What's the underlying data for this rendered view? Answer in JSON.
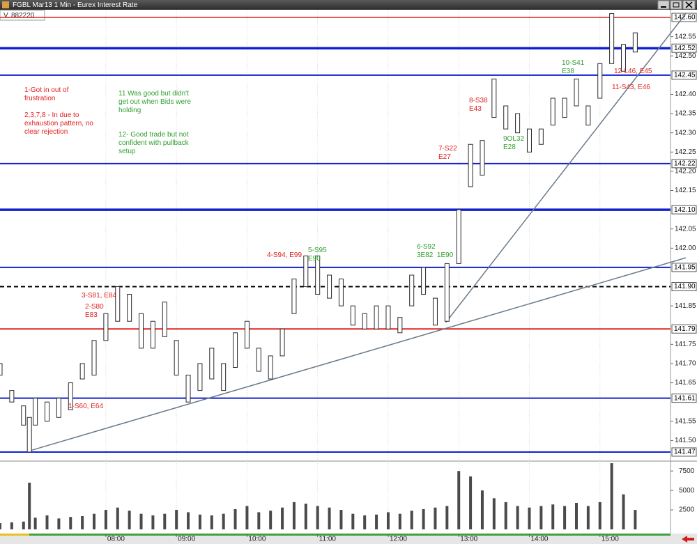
{
  "chart_data": {
    "type": "hilo",
    "title": "FGBL Mar13 1 Min - Eurex Interest Rate",
    "readout_label": "V",
    "readout_value": 882220,
    "x": [
      "06:30",
      "06:40",
      "06:50",
      "06:55",
      "07:00",
      "07:10",
      "07:20",
      "07:30",
      "07:40",
      "07:50",
      "08:00",
      "08:10",
      "08:20",
      "08:30",
      "08:40",
      "08:50",
      "09:00",
      "09:10",
      "09:20",
      "09:30",
      "09:40",
      "09:50",
      "10:00",
      "10:10",
      "10:20",
      "10:30",
      "10:40",
      "10:50",
      "11:00",
      "11:10",
      "11:20",
      "11:30",
      "11:40",
      "11:50",
      "12:00",
      "12:10",
      "12:20",
      "12:30",
      "12:40",
      "12:50",
      "13:00",
      "13:10",
      "13:20",
      "13:30",
      "13:40",
      "13:50",
      "14:00",
      "14:10",
      "14:20",
      "14:30",
      "14:40",
      "14:50",
      "15:00",
      "15:10",
      "15:20",
      "15:30"
    ],
    "high": [
      141.7,
      141.63,
      141.59,
      141.56,
      141.61,
      141.6,
      141.61,
      141.65,
      141.7,
      141.76,
      141.83,
      141.9,
      141.88,
      141.83,
      141.81,
      141.86,
      141.76,
      141.67,
      141.7,
      141.74,
      141.7,
      141.78,
      141.81,
      141.74,
      141.72,
      141.79,
      141.92,
      141.98,
      141.98,
      141.93,
      141.92,
      141.85,
      141.83,
      141.85,
      141.85,
      141.82,
      141.93,
      141.95,
      141.87,
      141.96,
      142.1,
      142.27,
      142.28,
      142.44,
      142.37,
      142.35,
      142.31,
      142.31,
      142.39,
      142.39,
      142.44,
      142.37,
      142.48,
      142.61,
      142.53,
      142.56
    ],
    "low": [
      141.67,
      141.6,
      141.54,
      141.47,
      141.54,
      141.55,
      141.56,
      141.58,
      141.66,
      141.67,
      141.76,
      141.81,
      141.81,
      141.74,
      141.74,
      141.77,
      141.67,
      141.6,
      141.63,
      141.66,
      141.63,
      141.69,
      141.74,
      141.68,
      141.66,
      141.72,
      141.83,
      141.9,
      141.88,
      141.87,
      141.85,
      141.8,
      141.79,
      141.79,
      141.79,
      141.78,
      141.85,
      141.88,
      141.8,
      141.81,
      141.96,
      142.16,
      142.19,
      142.34,
      142.31,
      142.3,
      142.25,
      142.27,
      142.32,
      142.34,
      142.37,
      142.32,
      142.39,
      142.48,
      142.46,
      142.51
    ],
    "volume": [
      800,
      900,
      1000,
      6000,
      1500,
      1800,
      1400,
      1600,
      1700,
      2000,
      2500,
      2800,
      2400,
      2000,
      1800,
      2000,
      2500,
      2200,
      1900,
      1800,
      2000,
      2600,
      3000,
      2200,
      2400,
      2800,
      3500,
      3300,
      3000,
      2800,
      2500,
      2000,
      1800,
      1900,
      2200,
      2000,
      2400,
      2600,
      2800,
      3000,
      7500,
      6800,
      5000,
      4000,
      3500,
      3000,
      2800,
      3000,
      3200,
      3000,
      3400,
      3000,
      3500,
      8500,
      4500,
      2500
    ],
    "bar_color": "#2a2a2a",
    "volume_color": "#4a4a4a",
    "xlim": [
      "06:30",
      "16:00"
    ],
    "xticks": [
      "08:00",
      "09:00",
      "10:00",
      "11:00",
      "12:00",
      "13:00",
      "14:00",
      "15:00"
    ],
    "grid": true,
    "ylim": [
      141.45,
      142.62
    ],
    "yticks": [
      {
        "value": 141.5,
        "label": "141.50"
      },
      141.55,
      141.65,
      {
        "value": 141.7,
        "label": "141.70"
      },
      141.75,
      141.85,
      {
        "value": 142.0,
        "label": "142.00"
      },
      142.05,
      142.15,
      {
        "value": 142.2,
        "label": "142.20"
      },
      142.25,
      {
        "value": 142.3,
        "label": "142.30"
      },
      142.35,
      {
        "value": 142.4,
        "label": "142.40"
      },
      {
        "value": 142.5,
        "label": "142.50"
      },
      142.55
    ],
    "volume_ylim": [
      0,
      8500
    ],
    "volume_yticks": [
      2500,
      5000,
      7500
    ],
    "levels": [
      {
        "value": 142.6,
        "label": "142.60",
        "color": "#e02020",
        "style": "thin"
      },
      {
        "value": 142.52,
        "label": "142.52",
        "color": "#1020d0",
        "style": "thick"
      },
      {
        "value": 142.45,
        "label": "142.45",
        "color": "#1020d0",
        "style": "normal"
      },
      {
        "value": 142.22,
        "label": "142.22",
        "color": "#1020d0",
        "style": "normal"
      },
      {
        "value": 142.1,
        "label": "142.10",
        "color": "#1020d0",
        "style": "thick"
      },
      {
        "value": 141.95,
        "label": "141.95",
        "color": "#1020d0",
        "style": "normal"
      },
      {
        "value": 141.9,
        "label": "141.90",
        "color": "#000000",
        "style": "dashed"
      },
      {
        "value": 141.79,
        "label": "141.79",
        "color": "#e02020",
        "style": "normal"
      },
      {
        "value": 141.61,
        "label": "141.61",
        "color": "#1020d0",
        "style": "normal"
      },
      {
        "value": 141.47,
        "label": "141.47",
        "color": "#1020d0",
        "style": "normal"
      }
    ],
    "trendlines": [
      {
        "x": [
          "12:49",
          "16:13"
        ],
        "y": [
          141.807,
          142.61
        ],
        "color": "#6a7a8a"
      },
      {
        "x": [
          "06:55",
          "16:13"
        ],
        "y": [
          141.473,
          141.975
        ],
        "color": "#6a7a8a"
      }
    ],
    "annotations": [
      {
        "lines": [
          "1-Got in out of",
          "frustration"
        ],
        "color": "#e02020"
      },
      {
        "lines": [
          "2,3,7,8 - In due to",
          "exhaustion pattern, no",
          "clear rejection"
        ],
        "color": "#e02020"
      },
      {
        "lines": [
          "11 Was good but didn't",
          "get out when Bids were",
          "holding"
        ],
        "color": "#2e9e2e"
      },
      {
        "lines": [
          "12- Good trade but not",
          "confident with pullback",
          "setup"
        ],
        "color": "#2e9e2e"
      },
      {
        "lines": [
          "1-S60, E64"
        ],
        "color": "#e02020"
      },
      {
        "lines": [
          "2-S80",
          "E83"
        ],
        "color": "#e02020"
      },
      {
        "lines": [
          "3-S81, E84"
        ],
        "color": "#e02020"
      },
      {
        "lines": [
          "4-S94, E99"
        ],
        "color": "#e02020"
      },
      {
        "lines": [
          "5-S95",
          "E90"
        ],
        "color": "#2e9e2e"
      },
      {
        "lines": [
          "6-S92",
          "3E82  1E90"
        ],
        "color": "#2e9e2e"
      },
      {
        "lines": [
          "7-S22",
          "E27"
        ],
        "color": "#e02020"
      },
      {
        "lines": [
          "8-S38",
          "E43"
        ],
        "color": "#e02020"
      },
      {
        "lines": [
          "9OL32",
          "E28"
        ],
        "color": "#2e9e2e"
      },
      {
        "lines": [
          "10-S41",
          "E38"
        ],
        "color": "#2e9e2e"
      },
      {
        "lines": [
          "12-L46, E45"
        ],
        "color": "#e02020"
      },
      {
        "lines": [
          "11-S43, E46"
        ],
        "color": "#e02020"
      }
    ]
  }
}
